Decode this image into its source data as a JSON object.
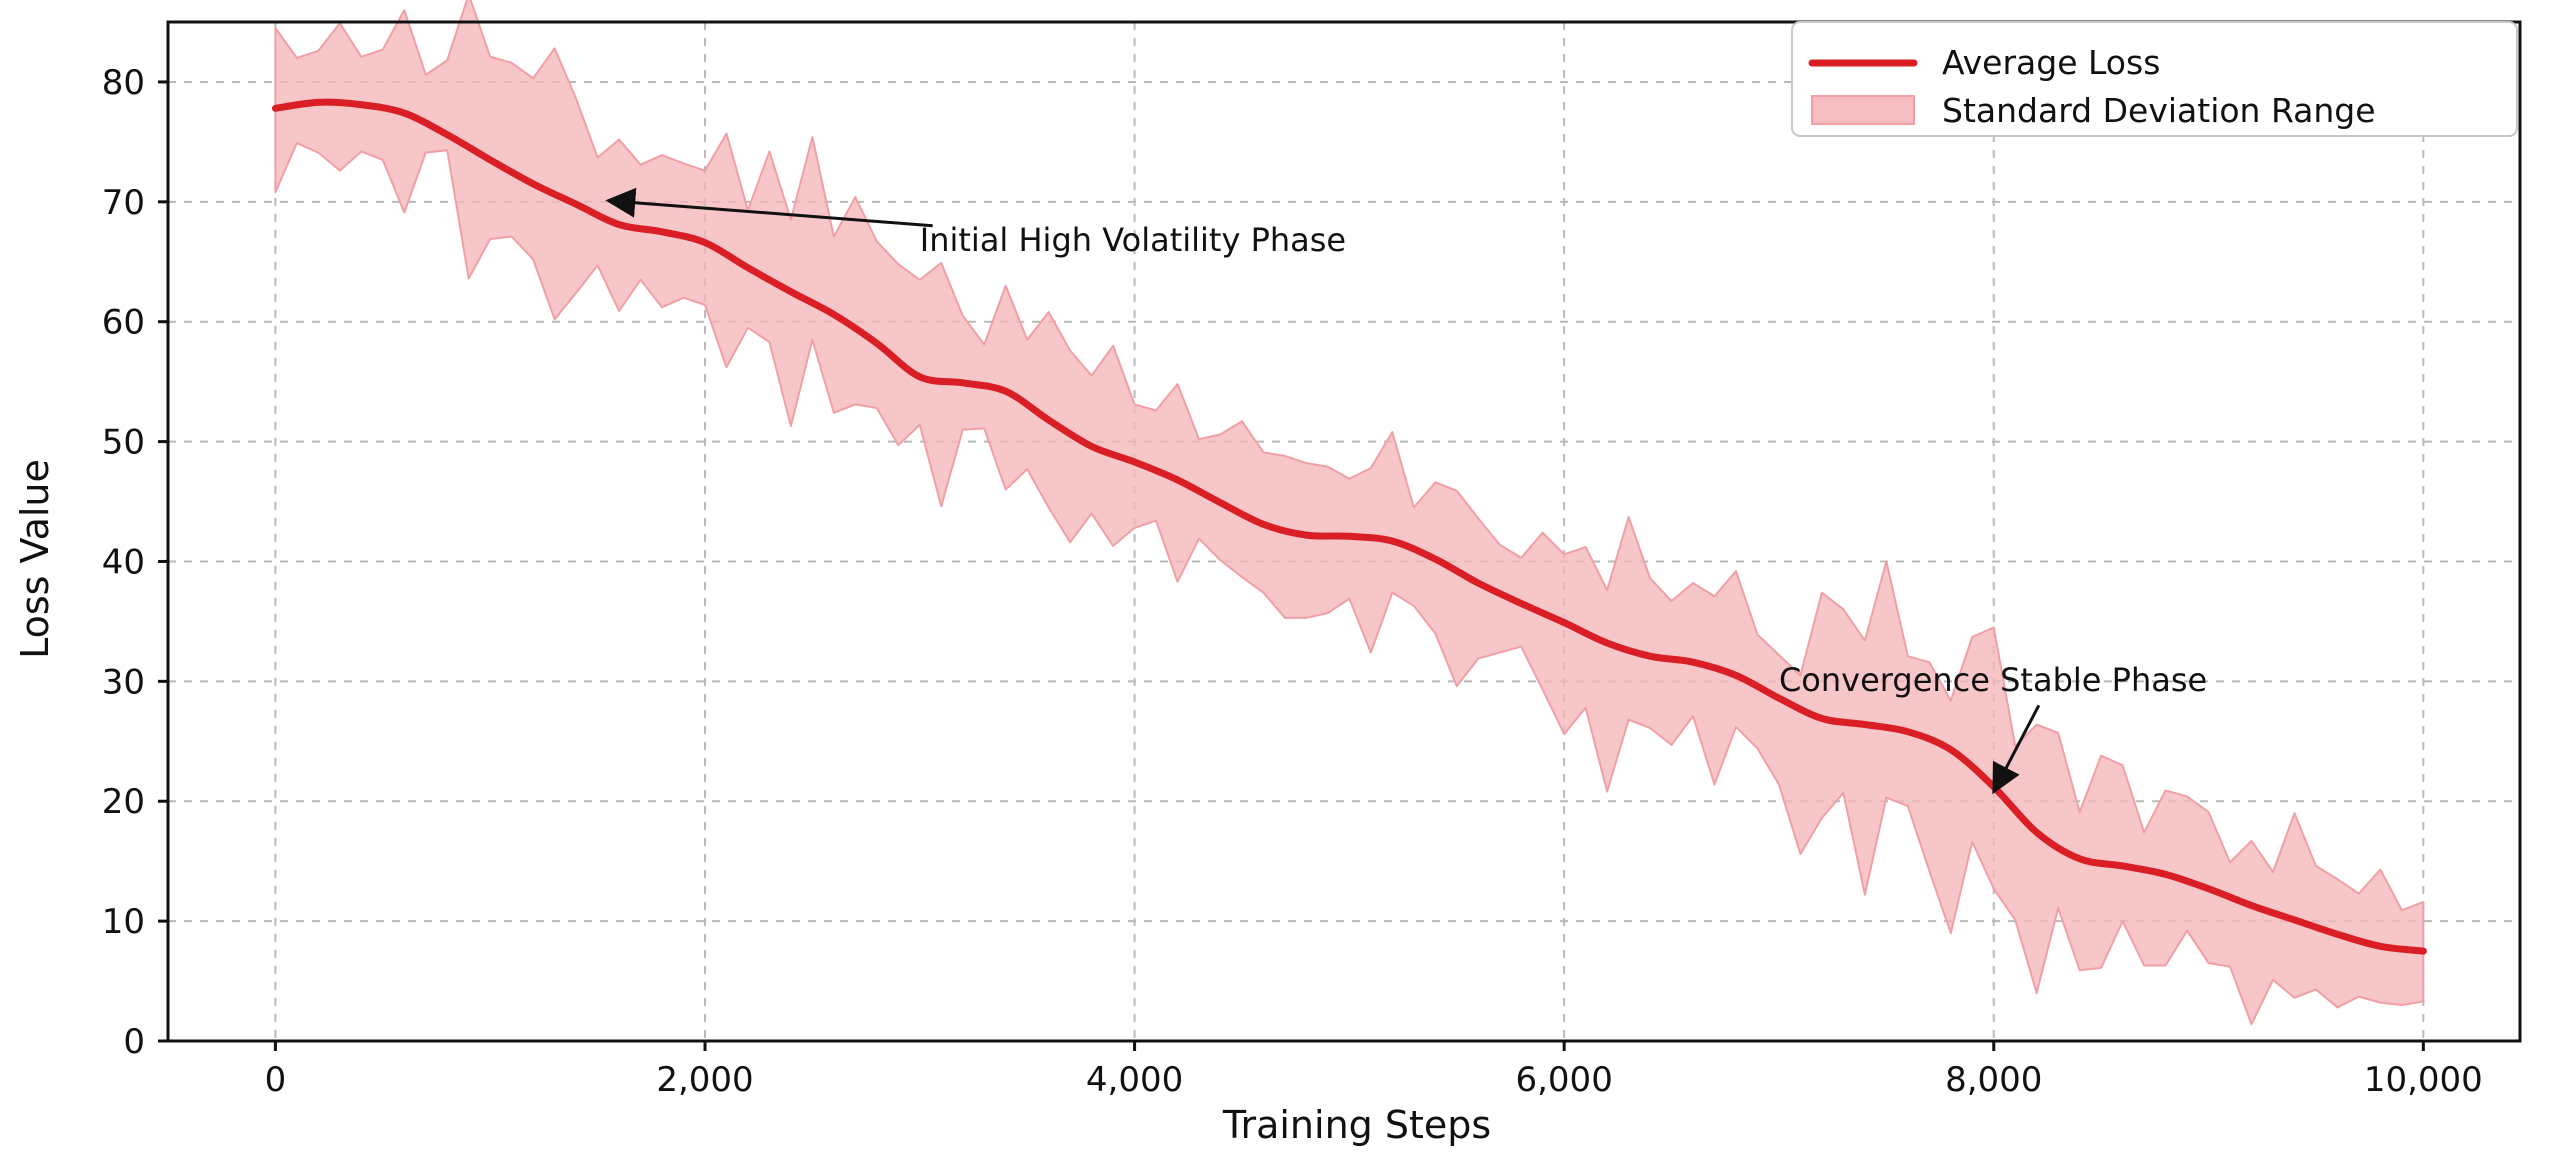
{
  "chart_data": {
    "type": "line",
    "title": "",
    "xlabel": "Training Steps",
    "ylabel": "Loss Value",
    "xlim": [
      -500,
      10450
    ],
    "ylim": [
      0,
      85
    ],
    "xticks": [
      0,
      2000,
      4000,
      6000,
      8000,
      10000
    ],
    "xtick_labels": [
      "0",
      "2,000",
      "4,000",
      "6,000",
      "8,000",
      "10,000"
    ],
    "yticks": [
      0,
      10,
      20,
      30,
      40,
      50,
      60,
      70,
      80
    ],
    "ytick_labels": [
      "0",
      "10",
      "20",
      "30",
      "40",
      "50",
      "60",
      "70",
      "80"
    ],
    "grid": true,
    "legend_position": "top-right",
    "legend": {
      "average_label": "Average Loss",
      "std_label": "Standard Deviation Range"
    },
    "series": [
      {
        "name": "Average Loss",
        "color": "#d91f25",
        "points": [
          [
            0,
            77.8
          ],
          [
            200,
            78.3
          ],
          [
            400,
            78.1
          ],
          [
            600,
            77.4
          ],
          [
            800,
            75.6
          ],
          [
            1000,
            73.5
          ],
          [
            1200,
            71.5
          ],
          [
            1400,
            69.8
          ],
          [
            1600,
            68.1
          ],
          [
            1800,
            67.5
          ],
          [
            2000,
            66.6
          ],
          [
            2200,
            64.5
          ],
          [
            2400,
            62.5
          ],
          [
            2600,
            60.6
          ],
          [
            2800,
            58.2
          ],
          [
            3000,
            55.4
          ],
          [
            3200,
            54.9
          ],
          [
            3400,
            54.2
          ],
          [
            3600,
            51.8
          ],
          [
            3800,
            49.6
          ],
          [
            4000,
            48.3
          ],
          [
            4200,
            46.8
          ],
          [
            4400,
            44.9
          ],
          [
            4600,
            43.1
          ],
          [
            4800,
            42.2
          ],
          [
            5000,
            42.1
          ],
          [
            5200,
            41.7
          ],
          [
            5400,
            40.2
          ],
          [
            5600,
            38.2
          ],
          [
            5800,
            36.5
          ],
          [
            6000,
            34.9
          ],
          [
            6200,
            33.2
          ],
          [
            6400,
            32.1
          ],
          [
            6600,
            31.6
          ],
          [
            6800,
            30.5
          ],
          [
            7000,
            28.6
          ],
          [
            7200,
            26.9
          ],
          [
            7400,
            26.4
          ],
          [
            7600,
            25.8
          ],
          [
            7800,
            24.3
          ],
          [
            8000,
            21.2
          ],
          [
            8200,
            17.4
          ],
          [
            8400,
            15.2
          ],
          [
            8600,
            14.6
          ],
          [
            8800,
            13.9
          ],
          [
            9000,
            12.7
          ],
          [
            9200,
            11.3
          ],
          [
            9400,
            10.1
          ],
          [
            9600,
            8.9
          ],
          [
            9800,
            7.9
          ],
          [
            10000,
            7.5
          ]
        ]
      },
      {
        "name": "Standard Deviation Range",
        "color": "#f2a4a8",
        "upper": [
          [
            0,
            84.5
          ],
          [
            100,
            82.0
          ],
          [
            200,
            82.6
          ],
          [
            300,
            84.9
          ],
          [
            400,
            82.1
          ],
          [
            500,
            82.7
          ],
          [
            600,
            86.0
          ],
          [
            700,
            80.6
          ],
          [
            800,
            81.8
          ],
          [
            900,
            87.3
          ],
          [
            1000,
            82.1
          ],
          [
            1100,
            81.6
          ],
          [
            1200,
            80.3
          ],
          [
            1300,
            82.8
          ],
          [
            1400,
            78.6
          ],
          [
            1500,
            73.7
          ],
          [
            1600,
            75.2
          ],
          [
            1700,
            73.1
          ],
          [
            1800,
            73.9
          ],
          [
            1900,
            73.2
          ],
          [
            2000,
            72.6
          ],
          [
            2100,
            75.7
          ],
          [
            2200,
            69.3
          ],
          [
            2300,
            74.2
          ],
          [
            2400,
            68.5
          ],
          [
            2500,
            75.4
          ],
          [
            2600,
            67.1
          ],
          [
            2700,
            70.4
          ],
          [
            2800,
            66.7
          ],
          [
            2900,
            64.8
          ],
          [
            3000,
            63.5
          ],
          [
            3100,
            64.9
          ],
          [
            3200,
            60.5
          ],
          [
            3300,
            58.1
          ],
          [
            3400,
            63.0
          ],
          [
            3500,
            58.5
          ],
          [
            3600,
            60.8
          ],
          [
            3700,
            57.6
          ],
          [
            3800,
            55.5
          ],
          [
            3900,
            58.0
          ],
          [
            4000,
            53.1
          ],
          [
            4100,
            52.6
          ],
          [
            4200,
            54.8
          ],
          [
            4300,
            50.2
          ],
          [
            4400,
            50.6
          ],
          [
            4500,
            51.7
          ],
          [
            4600,
            49.1
          ],
          [
            4700,
            48.8
          ],
          [
            4800,
            48.2
          ],
          [
            4900,
            47.9
          ],
          [
            5000,
            46.9
          ],
          [
            5100,
            47.8
          ],
          [
            5200,
            50.8
          ],
          [
            5300,
            44.5
          ],
          [
            5400,
            46.6
          ],
          [
            5500,
            45.9
          ],
          [
            5600,
            43.6
          ],
          [
            5700,
            41.4
          ],
          [
            5800,
            40.3
          ],
          [
            5900,
            42.4
          ],
          [
            6000,
            40.6
          ],
          [
            6100,
            41.2
          ],
          [
            6200,
            37.6
          ],
          [
            6300,
            43.7
          ],
          [
            6400,
            38.6
          ],
          [
            6500,
            36.7
          ],
          [
            6600,
            38.2
          ],
          [
            6700,
            37.1
          ],
          [
            6800,
            39.2
          ],
          [
            6900,
            33.9
          ],
          [
            7000,
            32.2
          ],
          [
            7100,
            30.5
          ],
          [
            7200,
            37.4
          ],
          [
            7300,
            36.0
          ],
          [
            7400,
            33.4
          ],
          [
            7500,
            40.0
          ],
          [
            7600,
            32.1
          ],
          [
            7700,
            31.6
          ],
          [
            7800,
            28.4
          ],
          [
            7900,
            33.7
          ],
          [
            8000,
            34.5
          ],
          [
            8100,
            24.6
          ],
          [
            8200,
            26.4
          ],
          [
            8300,
            25.7
          ],
          [
            8400,
            19.1
          ],
          [
            8500,
            23.8
          ],
          [
            8600,
            23.0
          ],
          [
            8700,
            17.4
          ],
          [
            8800,
            20.9
          ],
          [
            8900,
            20.4
          ],
          [
            9000,
            19.1
          ],
          [
            9100,
            14.9
          ],
          [
            9200,
            16.7
          ],
          [
            9300,
            14.1
          ],
          [
            9400,
            19.0
          ],
          [
            9500,
            14.6
          ],
          [
            9600,
            13.5
          ],
          [
            9700,
            12.3
          ],
          [
            9800,
            14.3
          ],
          [
            9900,
            10.9
          ],
          [
            10000,
            11.6
          ]
        ],
        "lower": [
          [
            0,
            70.8
          ],
          [
            100,
            74.9
          ],
          [
            200,
            74.1
          ],
          [
            300,
            72.6
          ],
          [
            400,
            74.2
          ],
          [
            500,
            73.5
          ],
          [
            600,
            69.1
          ],
          [
            700,
            74.1
          ],
          [
            800,
            74.3
          ],
          [
            900,
            63.6
          ],
          [
            1000,
            66.9
          ],
          [
            1100,
            67.1
          ],
          [
            1200,
            65.2
          ],
          [
            1300,
            60.2
          ],
          [
            1400,
            62.4
          ],
          [
            1500,
            64.7
          ],
          [
            1600,
            60.9
          ],
          [
            1700,
            63.5
          ],
          [
            1800,
            61.2
          ],
          [
            1900,
            62.0
          ],
          [
            2000,
            61.4
          ],
          [
            2100,
            56.2
          ],
          [
            2200,
            59.5
          ],
          [
            2300,
            58.3
          ],
          [
            2400,
            51.3
          ],
          [
            2500,
            58.5
          ],
          [
            2600,
            52.4
          ],
          [
            2700,
            53.1
          ],
          [
            2800,
            52.8
          ],
          [
            2900,
            49.7
          ],
          [
            3000,
            51.4
          ],
          [
            3100,
            44.6
          ],
          [
            3200,
            51.0
          ],
          [
            3300,
            51.1
          ],
          [
            3400,
            46.0
          ],
          [
            3500,
            47.7
          ],
          [
            3600,
            44.5
          ],
          [
            3700,
            41.6
          ],
          [
            3800,
            44.0
          ],
          [
            3900,
            41.3
          ],
          [
            4000,
            42.8
          ],
          [
            4100,
            43.4
          ],
          [
            4200,
            38.3
          ],
          [
            4300,
            41.9
          ],
          [
            4400,
            40.1
          ],
          [
            4500,
            38.7
          ],
          [
            4600,
            37.4
          ],
          [
            4700,
            35.3
          ],
          [
            4800,
            35.3
          ],
          [
            4900,
            35.7
          ],
          [
            5000,
            36.9
          ],
          [
            5100,
            32.4
          ],
          [
            5200,
            37.4
          ],
          [
            5300,
            36.3
          ],
          [
            5400,
            34.0
          ],
          [
            5500,
            29.6
          ],
          [
            5600,
            31.9
          ],
          [
            5700,
            32.4
          ],
          [
            5800,
            32.9
          ],
          [
            5900,
            29.3
          ],
          [
            6000,
            25.6
          ],
          [
            6100,
            27.8
          ],
          [
            6200,
            20.8
          ],
          [
            6300,
            26.8
          ],
          [
            6400,
            26.1
          ],
          [
            6500,
            24.7
          ],
          [
            6600,
            27.1
          ],
          [
            6700,
            21.4
          ],
          [
            6800,
            26.2
          ],
          [
            6900,
            24.4
          ],
          [
            7000,
            21.4
          ],
          [
            7100,
            15.6
          ],
          [
            7200,
            18.6
          ],
          [
            7300,
            20.7
          ],
          [
            7400,
            12.2
          ],
          [
            7500,
            20.3
          ],
          [
            7600,
            19.6
          ],
          [
            7700,
            14.2
          ],
          [
            7800,
            9.0
          ],
          [
            7900,
            16.6
          ],
          [
            8000,
            12.7
          ],
          [
            8100,
            10.1
          ],
          [
            8200,
            4.0
          ],
          [
            8300,
            11.1
          ],
          [
            8400,
            5.9
          ],
          [
            8500,
            6.1
          ],
          [
            8600,
            10.0
          ],
          [
            8700,
            6.3
          ],
          [
            8800,
            6.3
          ],
          [
            8900,
            9.2
          ],
          [
            9000,
            6.5
          ],
          [
            9100,
            6.2
          ],
          [
            9200,
            1.4
          ],
          [
            9300,
            5.1
          ],
          [
            9400,
            3.6
          ],
          [
            9500,
            4.3
          ],
          [
            9600,
            2.8
          ],
          [
            9700,
            3.7
          ],
          [
            9800,
            3.2
          ],
          [
            9900,
            3.0
          ],
          [
            10000,
            3.3
          ]
        ]
      }
    ],
    "annotations": [
      {
        "text": "Initial High Volatility Phase",
        "text_x": 3000,
        "text_y": 65.9,
        "arrow_target_x": 1550,
        "arrow_target_y": 70.1,
        "arrow_tail_x": 3060,
        "arrow_tail_y": 68.0
      },
      {
        "text": "Convergence Stable Phase",
        "text_x": 7000,
        "text_y": 29.2,
        "arrow_target_x": 8000,
        "arrow_target_y": 20.8,
        "arrow_tail_x": 8210,
        "arrow_tail_y": 28.0
      }
    ]
  }
}
